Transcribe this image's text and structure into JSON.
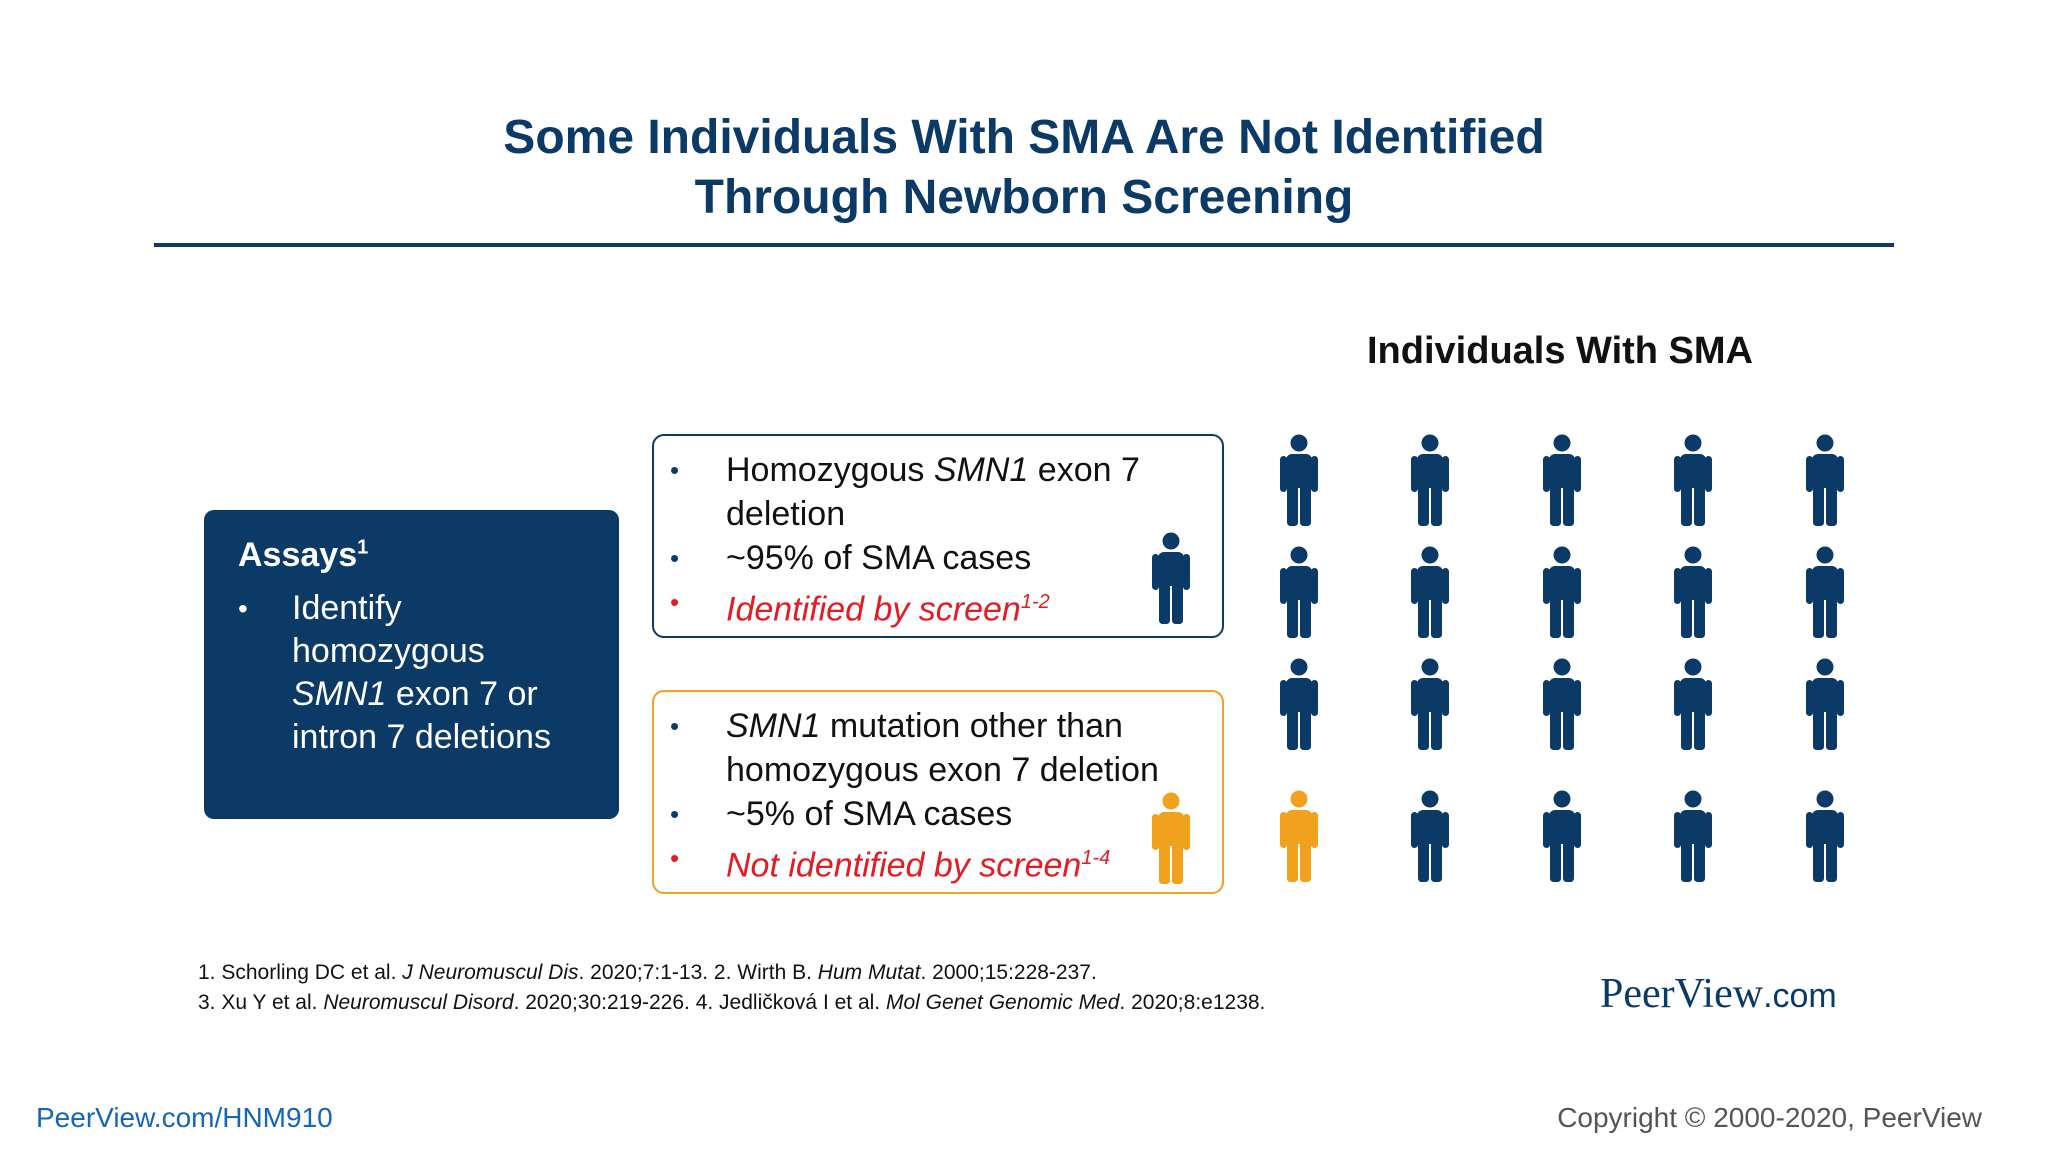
{
  "slide": {
    "title_line1": "Some Individuals With SMA Are Not Identified",
    "title_line2": "Through Newborn Screening"
  },
  "assays": {
    "title": "Assays",
    "title_sup": "1",
    "bullet": "•",
    "item_1": "Identify",
    "item_2": "homozygous",
    "item_3_italic": "SMN1",
    "item_3_rest": " exon 7 or",
    "item_4": "intron 7 deletions"
  },
  "identified_box": {
    "line1_pre": "Homozygous ",
    "line1_italic": "SMN1",
    "line1_post": " exon 7",
    "line2": "deletion",
    "line3": "~95% of SMA cases",
    "line4": "Identified by screen",
    "line4_sup": "1-2"
  },
  "not_identified_box": {
    "line1_italic": "SMN1",
    "line1_post": " mutation other than",
    "line2": "homozygous exon 7 deletion",
    "line3": "~5% of SMA cases",
    "line4": "Not identified by screen",
    "line4_sup": "1-4"
  },
  "chart": {
    "title": "Individuals With SMA",
    "rows": 4,
    "cols": 5,
    "identified_color": "#0b3a66",
    "not_identified_color": "#f0a11e",
    "not_identified_cell": [
      3,
      0
    ]
  },
  "references": {
    "r1_num": "1. Schorling DC et al. ",
    "r1_journal": "J Neuromuscul Dis",
    "r1_rest": ". 2020;7:1-13. 2. Wirth B. ",
    "r2_journal": "Hum Mutat",
    "r2_rest": ". 2000;15:228-237.",
    "r3_num": "3. Xu Y et al. ",
    "r3_journal": "Neuromuscul Disord",
    "r3_rest": ". 2020;30:219-226. 4. Jedličková I et al. ",
    "r4_journal": "Mol Genet Genomic Med",
    "r4_rest": ". 2020;8:e1238."
  },
  "brand": {
    "name": "PeerView",
    "suffix": ".com"
  },
  "footer": {
    "link": "PeerView.com/HNM910",
    "copyright": "Copyright © 2000-2020, PeerView"
  }
}
